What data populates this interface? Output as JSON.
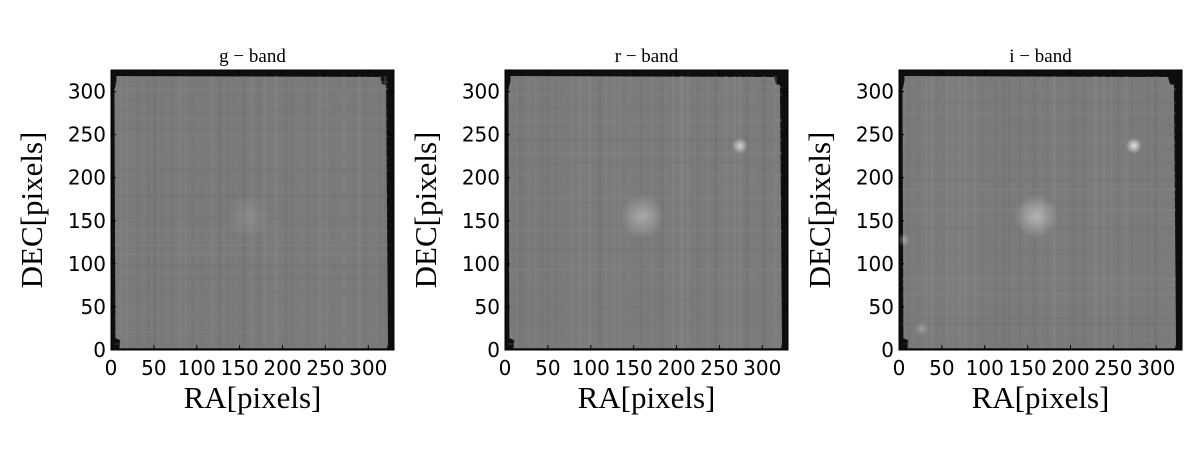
{
  "figure_colors": {
    "background": "#ffffff",
    "image_field": "#7b7b7b",
    "image_edge": "#0e0e0e"
  },
  "chart_data": [
    {
      "type": "heatmap",
      "title": "g − band",
      "xlabel": "RA[pixels]",
      "ylabel": "DEC[pixels]",
      "xlim": [
        0,
        330
      ],
      "ylim": [
        0,
        325
      ],
      "xticks": [
        "0",
        "50",
        "100",
        "150",
        "200",
        "250",
        "300"
      ],
      "yticks": [
        "0",
        "50",
        "100",
        "150",
        "200",
        "250",
        "300"
      ],
      "colormap": "gray",
      "grid": false,
      "sources": [
        {
          "x": 160,
          "y": 155,
          "strength": 0.06
        }
      ]
    },
    {
      "type": "heatmap",
      "title": "r − band",
      "xlabel": "RA[pixels]",
      "ylabel": "DEC[pixels]",
      "xlim": [
        0,
        330
      ],
      "ylim": [
        0,
        325
      ],
      "xticks": [
        "0",
        "50",
        "100",
        "150",
        "200",
        "250",
        "300"
      ],
      "yticks": [
        "0",
        "50",
        "100",
        "150",
        "200",
        "250",
        "300"
      ],
      "colormap": "gray",
      "grid": false,
      "sources": [
        {
          "x": 160,
          "y": 155,
          "strength": 0.16
        },
        {
          "x": 274,
          "y": 237,
          "strength": 0.3
        }
      ]
    },
    {
      "type": "heatmap",
      "title": "i − band",
      "xlabel": "RA[pixels]",
      "ylabel": "DEC[pixels]",
      "xlim": [
        0,
        330
      ],
      "ylim": [
        0,
        325
      ],
      "xticks": [
        "0",
        "50",
        "100",
        "150",
        "200",
        "250",
        "300"
      ],
      "yticks": [
        "0",
        "50",
        "100",
        "150",
        "200",
        "250",
        "300"
      ],
      "colormap": "gray",
      "grid": false,
      "sources": [
        {
          "x": 160,
          "y": 155,
          "strength": 0.2
        },
        {
          "x": 274,
          "y": 237,
          "strength": 0.35
        },
        {
          "x": 5,
          "y": 128,
          "strength": 0.15
        },
        {
          "x": 26,
          "y": 25,
          "strength": 0.12
        }
      ]
    }
  ]
}
